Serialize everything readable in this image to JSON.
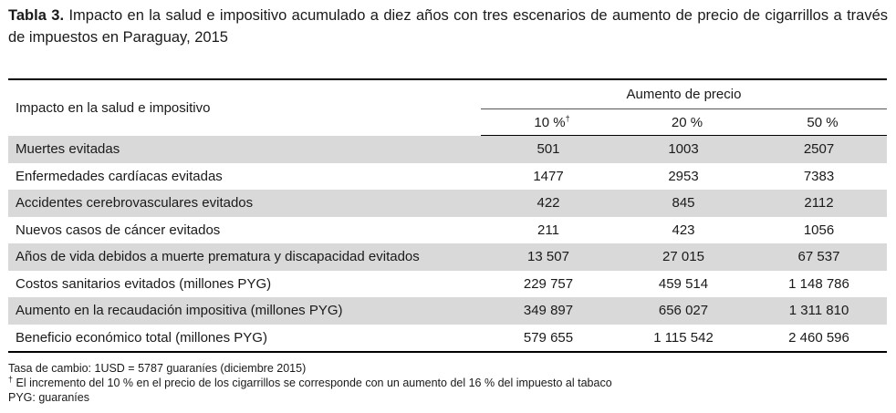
{
  "caption": {
    "label": "Tabla 3.",
    "text": "Impacto en la salud e impositivo acumulado a diez años con tres escenarios de aumento de precio de cigarrillos a través de impuestos en Paraguay, 2015"
  },
  "table": {
    "row_header": "Impacto en la salud e impositivo",
    "group_header": "Aumento de precio",
    "columns": [
      {
        "label": "10 %",
        "mark": "†"
      },
      {
        "label": "20 %",
        "mark": ""
      },
      {
        "label": "50 %",
        "mark": ""
      }
    ],
    "rows": [
      {
        "label": "Muertes evitadas",
        "values": [
          "501",
          "1003",
          "2507"
        ]
      },
      {
        "label": "Enfermedades cardíacas evitadas",
        "values": [
          "1477",
          "2953",
          "7383"
        ]
      },
      {
        "label": "Accidentes cerebrovasculares evitados",
        "values": [
          "422",
          "845",
          "2112"
        ]
      },
      {
        "label": "Nuevos casos de cáncer evitados",
        "values": [
          "211",
          "423",
          "1056"
        ]
      },
      {
        "label": "Años de vida debidos a muerte prematura y discapacidad evitados",
        "values": [
          "13 507",
          "27 015",
          "67 537"
        ]
      },
      {
        "label": "Costos sanitarios evitados (millones PYG)",
        "values": [
          "229 757",
          "459 514",
          "1 148 786"
        ]
      },
      {
        "label": "Aumento en la recaudación impositiva (millones PYG)",
        "values": [
          "349 897",
          "656 027",
          "1 311 810"
        ]
      },
      {
        "label": "Beneficio económico total (millones PYG)",
        "values": [
          "579 655",
          "1 115 542",
          "2 460 596"
        ]
      }
    ],
    "shade_color": "#d9d9d9"
  },
  "notes": {
    "exchange": "Tasa de cambio: 1USD = 5787 guaraníes (diciembre 2015)",
    "dagger_mark": "†",
    "dagger": " El incremento del 10 % en el precio de los cigarrillos se corresponde con un aumento del 16 % del impuesto al tabaco",
    "pyg": "PYG: guaraníes"
  }
}
